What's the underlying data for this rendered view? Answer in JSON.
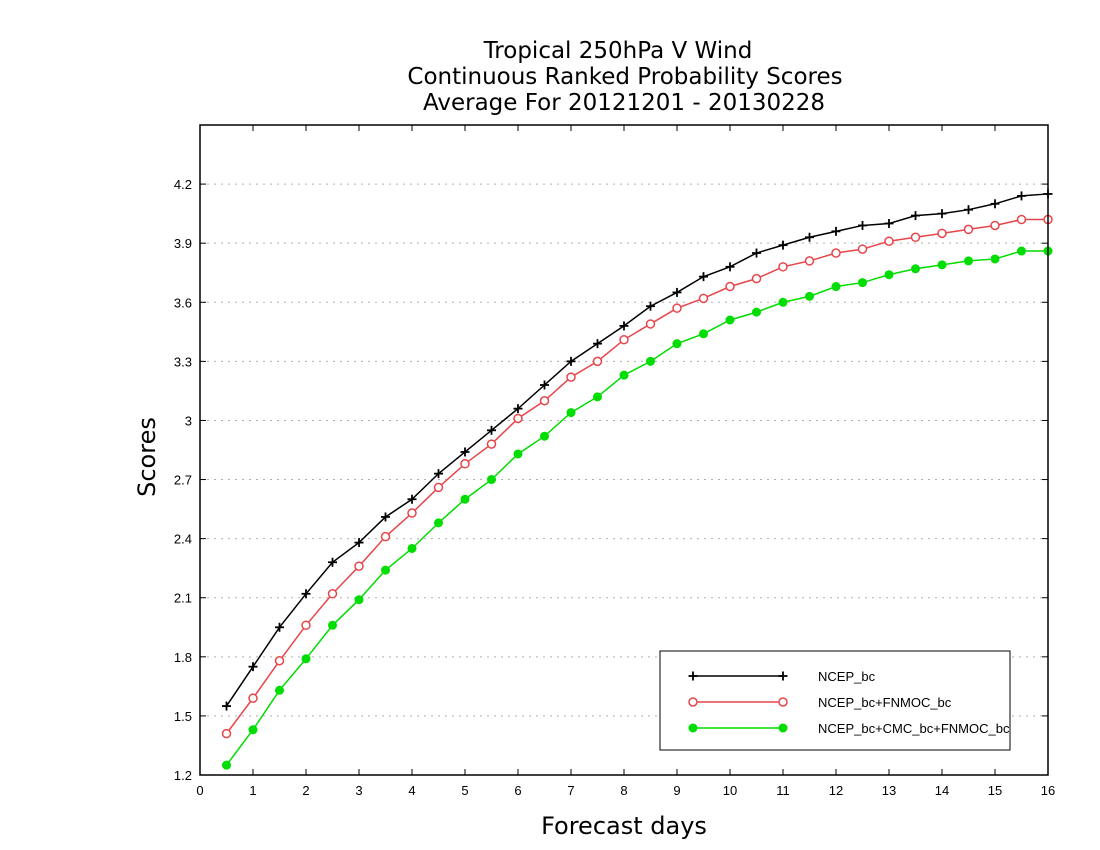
{
  "chart_data": {
    "type": "line",
    "title_lines": [
      "Tropical 250hPa V Wind",
      "Continuous Ranked Probability Scores",
      "Average For 20121201 - 20130228"
    ],
    "xlabel": "Forecast days",
    "ylabel": "Scores",
    "xlim": [
      0,
      16
    ],
    "ylim": [
      1.2,
      4.5
    ],
    "x_ticks": [
      0,
      1,
      2,
      3,
      4,
      5,
      6,
      7,
      8,
      9,
      10,
      11,
      12,
      13,
      14,
      15,
      16
    ],
    "y_ticks": [
      1.2,
      1.5,
      1.8,
      2.1,
      2.4,
      2.7,
      3,
      3.3,
      3.6,
      3.9,
      4.2
    ],
    "y_tick_labels": [
      "1.2",
      "1.5",
      "1.8",
      "2.1",
      "2.4",
      "2.7",
      "3",
      "3.3",
      "3.6",
      "3.9",
      "4.2"
    ],
    "grid": "horizontal-dotted",
    "legend_position": "lower-right",
    "x": [
      0.5,
      1,
      1.5,
      2,
      2.5,
      3,
      3.5,
      4,
      4.5,
      5,
      5.5,
      6,
      6.5,
      7,
      7.5,
      8,
      8.5,
      9,
      9.5,
      10,
      10.5,
      11,
      11.5,
      12,
      12.5,
      13,
      13.5,
      14,
      14.5,
      15,
      15.5,
      16
    ],
    "series": [
      {
        "name": "NCEP_bc",
        "color": "#000000",
        "marker": "plus",
        "values": [
          1.55,
          1.75,
          1.95,
          2.12,
          2.28,
          2.38,
          2.51,
          2.6,
          2.73,
          2.84,
          2.95,
          3.06,
          3.18,
          3.3,
          3.39,
          3.48,
          3.58,
          3.65,
          3.73,
          3.78,
          3.85,
          3.89,
          3.93,
          3.96,
          3.99,
          4.0,
          4.04,
          4.05,
          4.07,
          4.1,
          4.14,
          4.15
        ]
      },
      {
        "name": "NCEP_bc+FNMOC_bc",
        "color": "#e8454a",
        "marker": "open-circle",
        "values": [
          1.41,
          1.59,
          1.78,
          1.96,
          2.12,
          2.26,
          2.41,
          2.53,
          2.66,
          2.78,
          2.88,
          3.01,
          3.1,
          3.22,
          3.3,
          3.41,
          3.49,
          3.57,
          3.62,
          3.68,
          3.72,
          3.78,
          3.81,
          3.85,
          3.87,
          3.91,
          3.93,
          3.95,
          3.97,
          3.99,
          4.02,
          4.02
        ]
      },
      {
        "name": "NCEP_bc+CMC_bc+FNMOC_bc",
        "color": "#00dd00",
        "marker": "filled-circle",
        "values": [
          1.25,
          1.43,
          1.63,
          1.79,
          1.96,
          2.09,
          2.24,
          2.35,
          2.48,
          2.6,
          2.7,
          2.83,
          2.92,
          3.04,
          3.12,
          3.23,
          3.3,
          3.39,
          3.44,
          3.51,
          3.55,
          3.6,
          3.63,
          3.68,
          3.7,
          3.74,
          3.77,
          3.79,
          3.81,
          3.82,
          3.86,
          3.86
        ]
      }
    ]
  }
}
